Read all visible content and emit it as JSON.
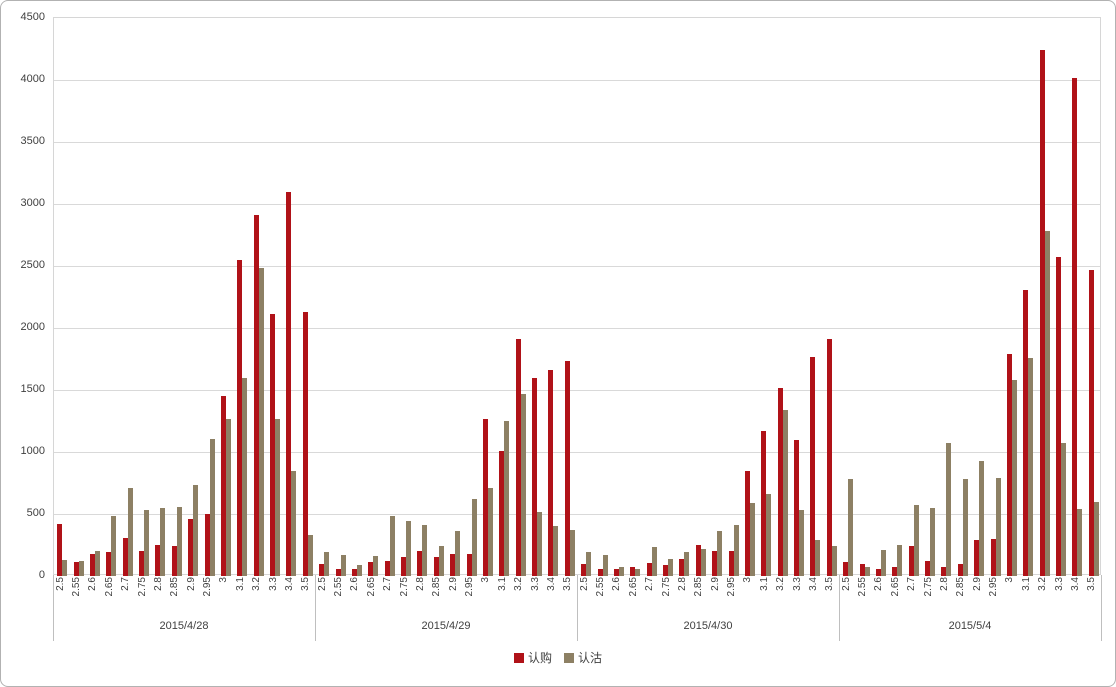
{
  "chart_data": {
    "type": "bar",
    "title": "",
    "xlabel": "",
    "ylabel": "",
    "ylim": [
      0,
      4500
    ],
    "yticks": [
      0,
      500,
      1000,
      1500,
      2000,
      2500,
      3000,
      3500,
      4000,
      4500
    ],
    "grid": "horizontal",
    "legend_position": "bottom",
    "strike_labels": [
      "2.5",
      "2.55",
      "2.6",
      "2.65",
      "2.7",
      "2.75",
      "2.8",
      "2.85",
      "2.9",
      "2.95",
      "3",
      "3.1",
      "3.2",
      "3.3",
      "3.4",
      "3.5"
    ],
    "legend": [
      {
        "name": "认购",
        "color": "#B01218"
      },
      {
        "name": "认沽",
        "color": "#8D8064"
      }
    ],
    "groups": [
      {
        "date": "2015/4/28",
        "认购": [
          420,
          110,
          180,
          190,
          310,
          200,
          250,
          240,
          460,
          500,
          1450,
          2545,
          2910,
          2110,
          3100,
          2130
        ],
        "认沽": [
          130,
          125,
          200,
          480,
          710,
          530,
          545,
          560,
          730,
          1105,
          1265,
          1600,
          2480,
          1270,
          850,
          330
        ]
      },
      {
        "date": "2015/4/29",
        "认购": [
          100,
          60,
          55,
          110,
          120,
          150,
          200,
          150,
          175,
          180,
          1270,
          1010,
          1910,
          1600,
          1660,
          1730
        ],
        "认沽": [
          190,
          170,
          90,
          160,
          480,
          440,
          410,
          240,
          360,
          620,
          710,
          1250,
          1470,
          520,
          400,
          370
        ]
      },
      {
        "date": "2015/4/30",
        "认购": [
          95,
          55,
          60,
          70,
          105,
          90,
          140,
          250,
          200,
          200,
          850,
          1170,
          1520,
          1100,
          1770,
          1910
        ],
        "认沽": [
          190,
          170,
          75,
          60,
          230,
          135,
          190,
          220,
          360,
          410,
          590,
          660,
          1340,
          530,
          290,
          240
        ]
      },
      {
        "date": "2015/5/4",
        "认购": [
          110,
          100,
          55,
          75,
          240,
          120,
          70,
          100,
          290,
          300,
          1790,
          2310,
          4240,
          2570,
          4020,
          2470
        ],
        "认沽": [
          780,
          75,
          210,
          250,
          570,
          550,
          1070,
          780,
          930,
          790,
          1580,
          1760,
          2780,
          1070,
          540,
          600
        ]
      }
    ]
  }
}
